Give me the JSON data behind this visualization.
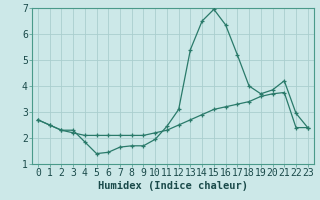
{
  "xlabel": "Humidex (Indice chaleur)",
  "background_color": "#cce8e8",
  "grid_color": "#aacece",
  "line_color": "#2a7a6a",
  "x_values": [
    0,
    1,
    2,
    3,
    4,
    5,
    6,
    7,
    8,
    9,
    10,
    11,
    12,
    13,
    14,
    15,
    16,
    17,
    18,
    19,
    20,
    21,
    22,
    23
  ],
  "line1_y": [
    2.7,
    2.5,
    2.3,
    2.3,
    1.85,
    1.4,
    1.45,
    1.65,
    1.7,
    1.7,
    1.95,
    2.45,
    3.1,
    5.4,
    6.5,
    6.95,
    6.35,
    5.2,
    4.0,
    3.7,
    3.85,
    4.2,
    2.95,
    2.4
  ],
  "line2_y": [
    2.7,
    2.5,
    2.3,
    2.2,
    2.1,
    2.1,
    2.1,
    2.1,
    2.1,
    2.1,
    2.2,
    2.3,
    2.5,
    2.7,
    2.9,
    3.1,
    3.2,
    3.3,
    3.4,
    3.6,
    3.7,
    3.75,
    2.4,
    2.4
  ],
  "ylim": [
    1,
    7
  ],
  "xlim": [
    -0.5,
    23.5
  ],
  "yticks": [
    1,
    2,
    3,
    4,
    5,
    6,
    7
  ],
  "xticks": [
    0,
    1,
    2,
    3,
    4,
    5,
    6,
    7,
    8,
    9,
    10,
    11,
    12,
    13,
    14,
    15,
    16,
    17,
    18,
    19,
    20,
    21,
    22,
    23
  ],
  "tick_fontsize": 7,
  "xlabel_fontsize": 7.5,
  "spine_color": "#4a9a8a"
}
